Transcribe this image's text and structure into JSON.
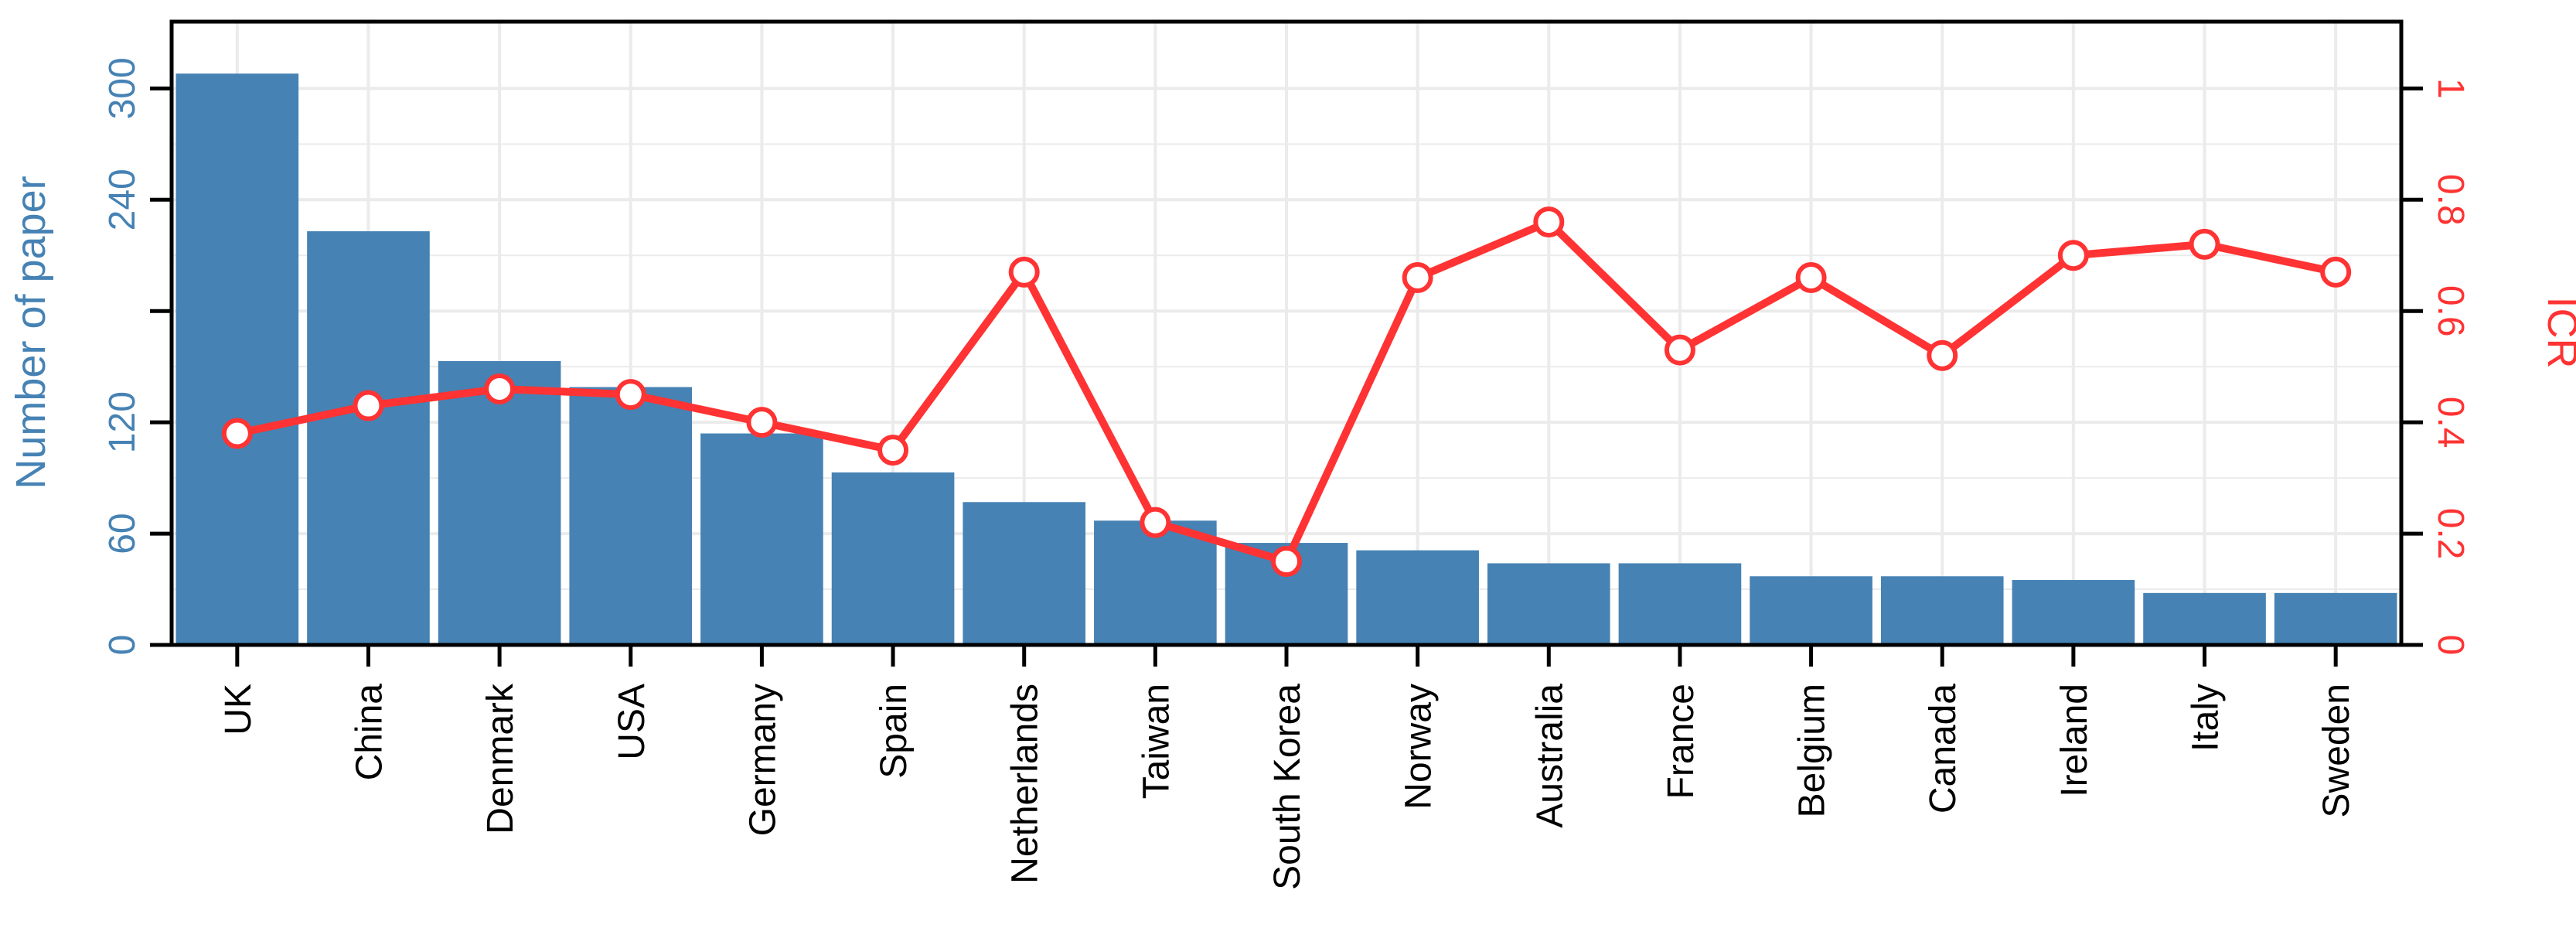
{
  "chart_data": {
    "type": "bar",
    "categories": [
      "UK",
      "China",
      "Denmark",
      "USA",
      "Germany",
      "Spain",
      "Netherlands",
      "Taiwan",
      "South Korea",
      "Norway",
      "Australia",
      "France",
      "Belgium",
      "Canada",
      "Ireland",
      "Italy",
      "Sweden"
    ],
    "series": [
      {
        "type": "bar",
        "axis": "left",
        "values": [
          308,
          223,
          153,
          139,
          114,
          93,
          77,
          67,
          55,
          51,
          44,
          44,
          37,
          37,
          35,
          28,
          28
        ]
      },
      {
        "type": "line",
        "axis": "right",
        "values": [
          0.38,
          0.43,
          0.46,
          0.45,
          0.4,
          0.35,
          0.67,
          0.22,
          0.15,
          0.66,
          0.76,
          0.53,
          0.66,
          0.52,
          0.7,
          0.72,
          0.67
        ]
      }
    ],
    "ylabel": "Number of paper",
    "y2label": "ICR",
    "ylim": [
      0,
      336
    ],
    "y2lim": [
      0,
      1.12
    ],
    "yticks": [
      0,
      60,
      120,
      180,
      240,
      300
    ],
    "yticklabels": [
      "0",
      "60",
      "120",
      "",
      "240",
      "300"
    ],
    "y2ticks": [
      0,
      0.2,
      0.4,
      0.6,
      0.8,
      1
    ],
    "y2ticklabels": [
      "0",
      "0.2",
      "0.4",
      "0.6",
      "0.8",
      "1"
    ],
    "grid": true,
    "legend": "none",
    "colors": {
      "bar": "#4682B4",
      "line": "#FF3333",
      "marker_fill": "#FFFFFF",
      "grid": "#EBEBEB",
      "frame": "#000000"
    }
  }
}
